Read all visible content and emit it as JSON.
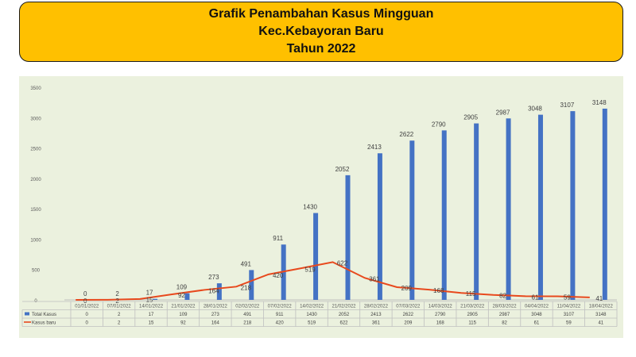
{
  "title_lines": [
    "Grafik Penambahan Kasus Mingguan",
    "Kec.Kebayoran Baru",
    "Tahun 2022"
  ],
  "colors": {
    "title_bg": "#ffc000",
    "chart_bg": "#ebf1de",
    "bar": "#4472c4",
    "line": "#e8491d"
  },
  "chart_data": {
    "type": "bar",
    "categories": [
      "01/01/2022",
      "07/01/2022",
      "14/01/2022",
      "21/01/2022",
      "28/01/2022",
      "02/02/2022",
      "07/02/2022",
      "14/02/2022",
      "21/02/2022",
      "28/02/2022",
      "07/03/2022",
      "14/03/2022",
      "21/03/2022",
      "28/03/2022",
      "04/04/2022",
      "11/04/2022",
      "18/04/2022"
    ],
    "series": [
      {
        "name": "Total Kasus",
        "type": "bar",
        "values": [
          0,
          2,
          17,
          109,
          273,
          491,
          911,
          1430,
          2052,
          2413,
          2622,
          2790,
          2905,
          2987,
          3048,
          3107,
          3148
        ]
      },
      {
        "name": "Kasus baru",
        "type": "line",
        "values": [
          0,
          2,
          15,
          92,
          164,
          218,
          420,
          519,
          622,
          361,
          209,
          168,
          115,
          82,
          61,
          59,
          41
        ]
      }
    ],
    "ylim": [
      0,
      3500
    ],
    "yticks": [
      0,
      500,
      1000,
      1500,
      2000,
      2500,
      3000,
      3500
    ],
    "grid": false,
    "legend": "data-table-bottom",
    "data_table": true
  }
}
